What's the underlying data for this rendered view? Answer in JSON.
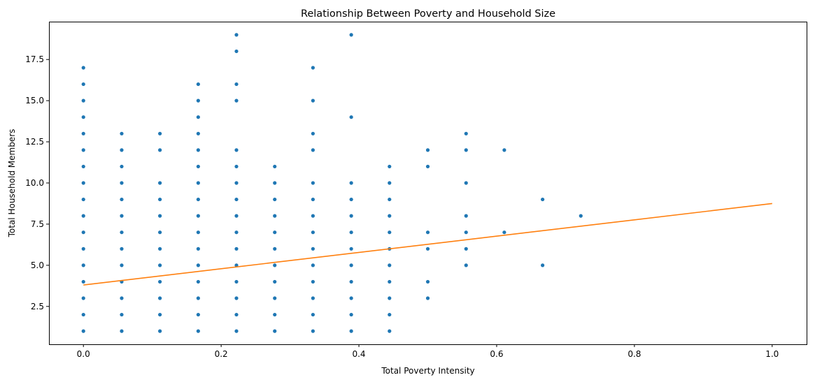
{
  "chart_data": {
    "type": "scatter",
    "title": "Relationship Between Poverty and Household Size",
    "xlabel": "Total Poverty Intensity",
    "ylabel": "Total Household Members",
    "xlim": [
      -0.05,
      1.05
    ],
    "ylim": [
      0.2,
      19.8
    ],
    "x_ticks": [
      0.0,
      0.2,
      0.4,
      0.6,
      0.8,
      1.0
    ],
    "x_tick_labels": [
      "0.0",
      "0.2",
      "0.4",
      "0.6",
      "0.8",
      "1.0"
    ],
    "y_ticks": [
      2.5,
      5.0,
      7.5,
      10.0,
      12.5,
      15.0,
      17.5
    ],
    "y_tick_labels": [
      "2.5",
      "5.0",
      "7.5",
      "10.0",
      "12.5",
      "15.0",
      "17.5"
    ],
    "grid": false,
    "legend": "none",
    "colors": {
      "points": "#1f77b4",
      "trend": "#ff7f0e"
    },
    "series": [
      {
        "kind": "points",
        "columns": [
          {
            "x": 0.0,
            "y": [
              1,
              2,
              3,
              4,
              5,
              6,
              7,
              8,
              9,
              10,
              11,
              12,
              13,
              14,
              15,
              16,
              17
            ]
          },
          {
            "x": 0.0556,
            "y": [
              1,
              2,
              3,
              4,
              5,
              6,
              7,
              8,
              9,
              10,
              11,
              12,
              13
            ]
          },
          {
            "x": 0.1111,
            "y": [
              1,
              2,
              3,
              4,
              5,
              6,
              7,
              8,
              9,
              10,
              12,
              13
            ]
          },
          {
            "x": 0.1667,
            "y": [
              1,
              2,
              3,
              4,
              5,
              6,
              7,
              8,
              9,
              10,
              11,
              12,
              13,
              14,
              15,
              16
            ]
          },
          {
            "x": 0.2222,
            "y": [
              1,
              2,
              3,
              4,
              5,
              6,
              7,
              8,
              9,
              10,
              11,
              12,
              15,
              16,
              18,
              19
            ]
          },
          {
            "x": 0.2778,
            "y": [
              1,
              2,
              3,
              4,
              5,
              6,
              7,
              8,
              9,
              10,
              11
            ]
          },
          {
            "x": 0.3333,
            "y": [
              1,
              2,
              3,
              4,
              5,
              6,
              7,
              8,
              9,
              10,
              12,
              13,
              15,
              17
            ]
          },
          {
            "x": 0.3889,
            "y": [
              1,
              2,
              3,
              4,
              5,
              6,
              7,
              8,
              9,
              10,
              14,
              19
            ]
          },
          {
            "x": 0.4444,
            "y": [
              1,
              2,
              3,
              4,
              5,
              6,
              7,
              8,
              9,
              10,
              11
            ]
          },
          {
            "x": 0.5,
            "y": [
              3,
              4,
              6,
              7,
              11,
              12
            ]
          },
          {
            "x": 0.5556,
            "y": [
              5,
              6,
              7,
              8,
              10,
              12,
              13
            ]
          },
          {
            "x": 0.6111,
            "y": [
              7,
              12
            ]
          },
          {
            "x": 0.6667,
            "y": [
              5,
              9
            ]
          },
          {
            "x": 0.7222,
            "y": [
              8
            ]
          }
        ]
      },
      {
        "kind": "line",
        "x": [
          0.0,
          1.0
        ],
        "y": [
          3.8,
          8.75
        ]
      }
    ]
  }
}
